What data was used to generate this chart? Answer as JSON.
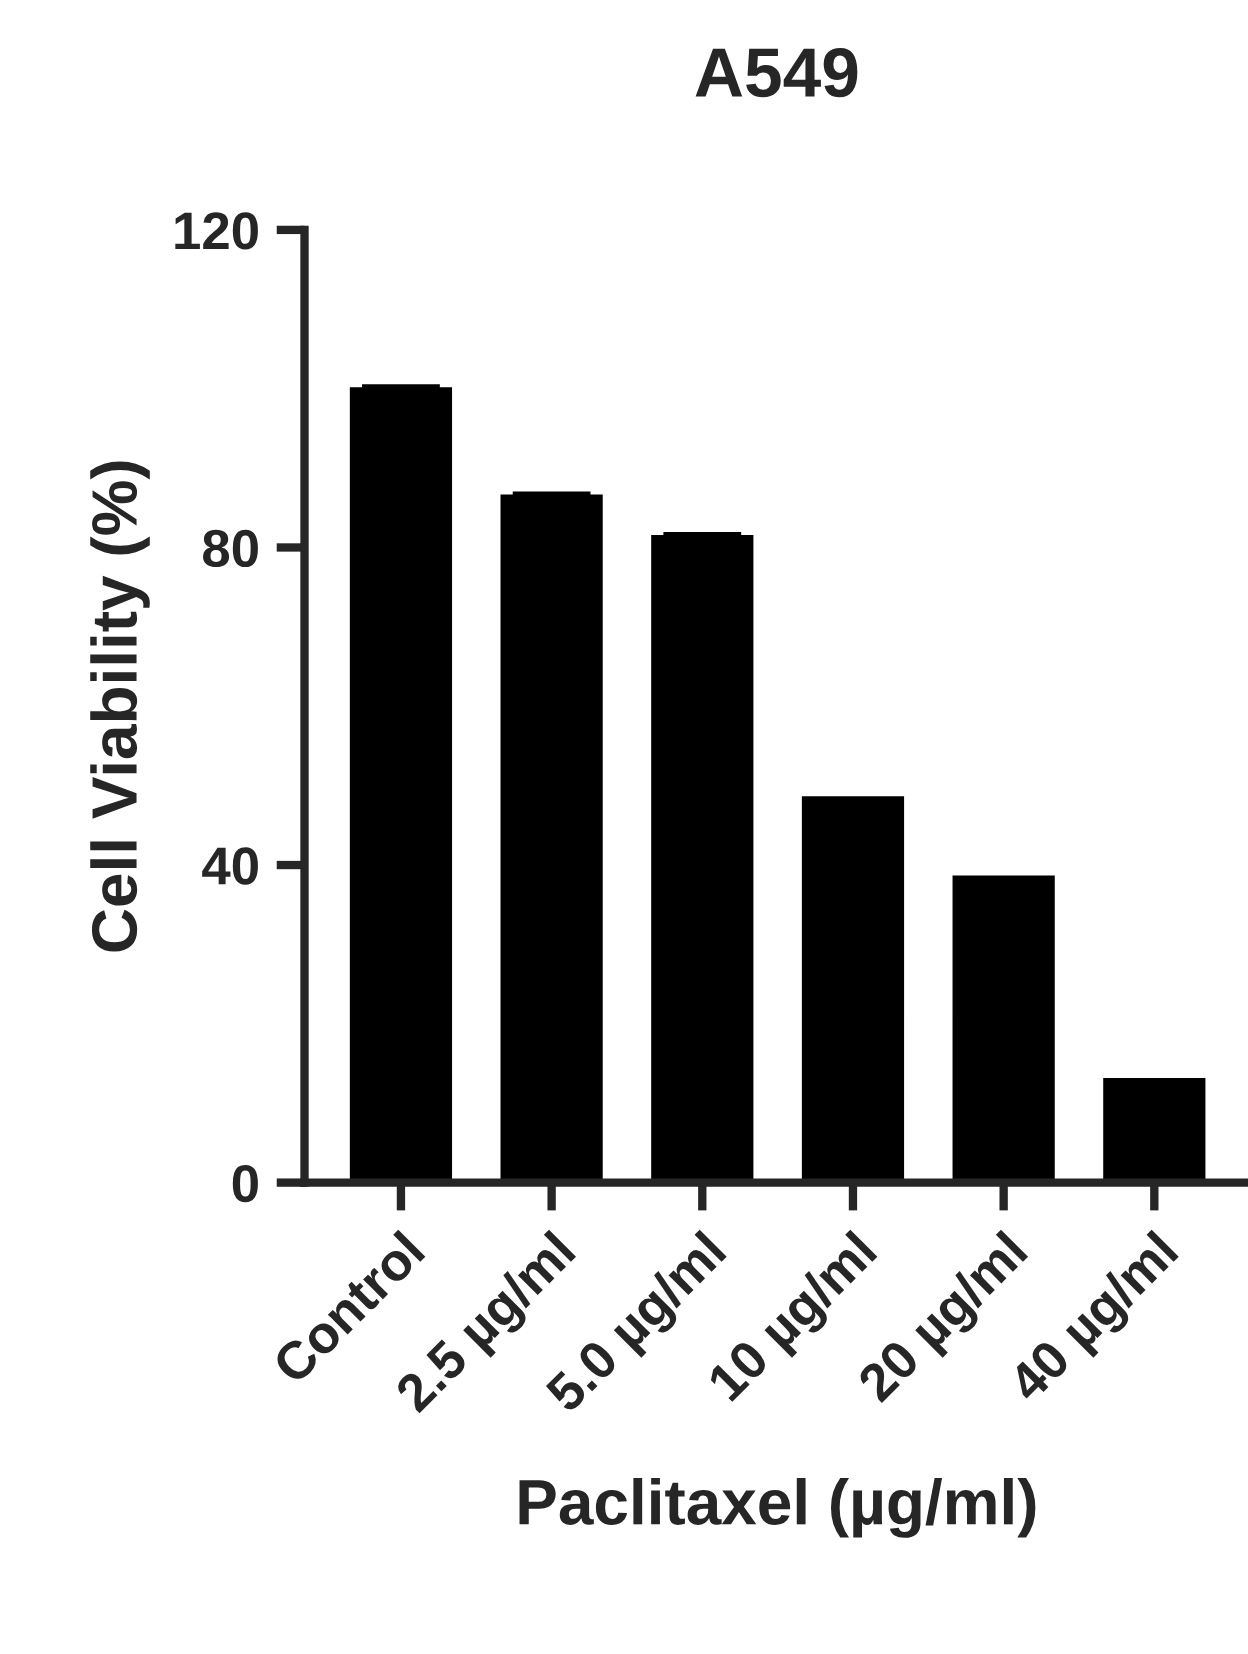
{
  "chart_data": {
    "type": "bar",
    "title": "A549",
    "xlabel": "Paclitaxel (µg/ml)",
    "ylabel": "Cell Viability (%)",
    "categories": [
      "Control",
      "2.5 µg/ml",
      "5.0 µg/ml",
      "10 µg/ml",
      "20 µg/ml",
      "40 µg/ml"
    ],
    "values": [
      100,
      86.5,
      81.4,
      48.5,
      38.5,
      13.0
    ],
    "errors": [
      0.3,
      0.3,
      0.3,
      null,
      null,
      null
    ],
    "color": "#000000",
    "ylim": [
      0,
      120
    ],
    "yticks": [
      0,
      40,
      80,
      120
    ],
    "grid": false,
    "legend": false
  }
}
